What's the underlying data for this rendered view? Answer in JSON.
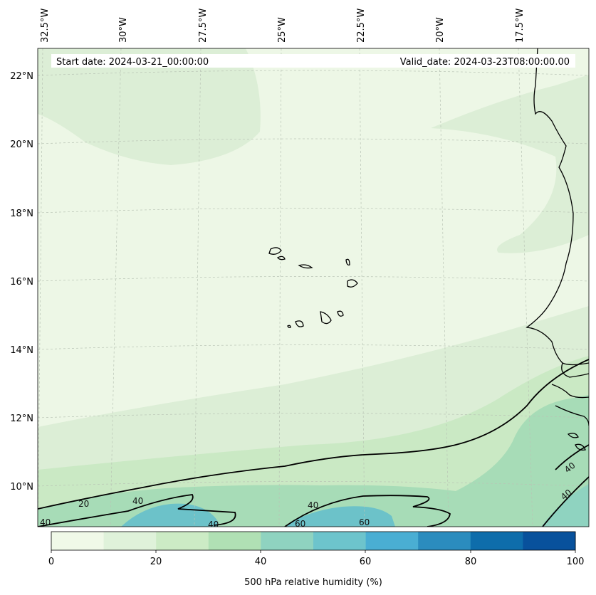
{
  "header": {
    "start_label": "Start date: 2024-03-21_00:00:00",
    "valid_label": "Valid_date: 2024-03-23T08:00:00.00"
  },
  "axes": {
    "lon_labels": [
      "32.5°W",
      "30°W",
      "27.5°W",
      "25°W",
      "22.5°W",
      "20°W",
      "17.5°W"
    ],
    "lat_labels": [
      "22°N",
      "20°N",
      "18°N",
      "16°N",
      "14°N",
      "12°N",
      "10°N"
    ]
  },
  "contour_labels": [
    "20",
    "40",
    "40",
    "40",
    "60",
    "60",
    "40",
    "40",
    "40"
  ],
  "colorbar": {
    "title": "500 hPa relative humidity (%)",
    "ticks": [
      "0",
      "20",
      "40",
      "60",
      "80",
      "100"
    ],
    "colors": [
      "#f0f9e8",
      "#dff2da",
      "#ccebc5",
      "#b0e0b4",
      "#8fd3c0",
      "#6dc4cc",
      "#4aaed3",
      "#2b8cbe",
      "#0e6dab",
      "#08519c"
    ]
  },
  "colors": {
    "ocean_base": "#edf7e6",
    "band_light": "#deefd8",
    "band_mid": "#cae9c4",
    "band_teal": "#a6dcb9",
    "band_blue": "#6cc2c9",
    "grid": "#b9c4b5"
  }
}
